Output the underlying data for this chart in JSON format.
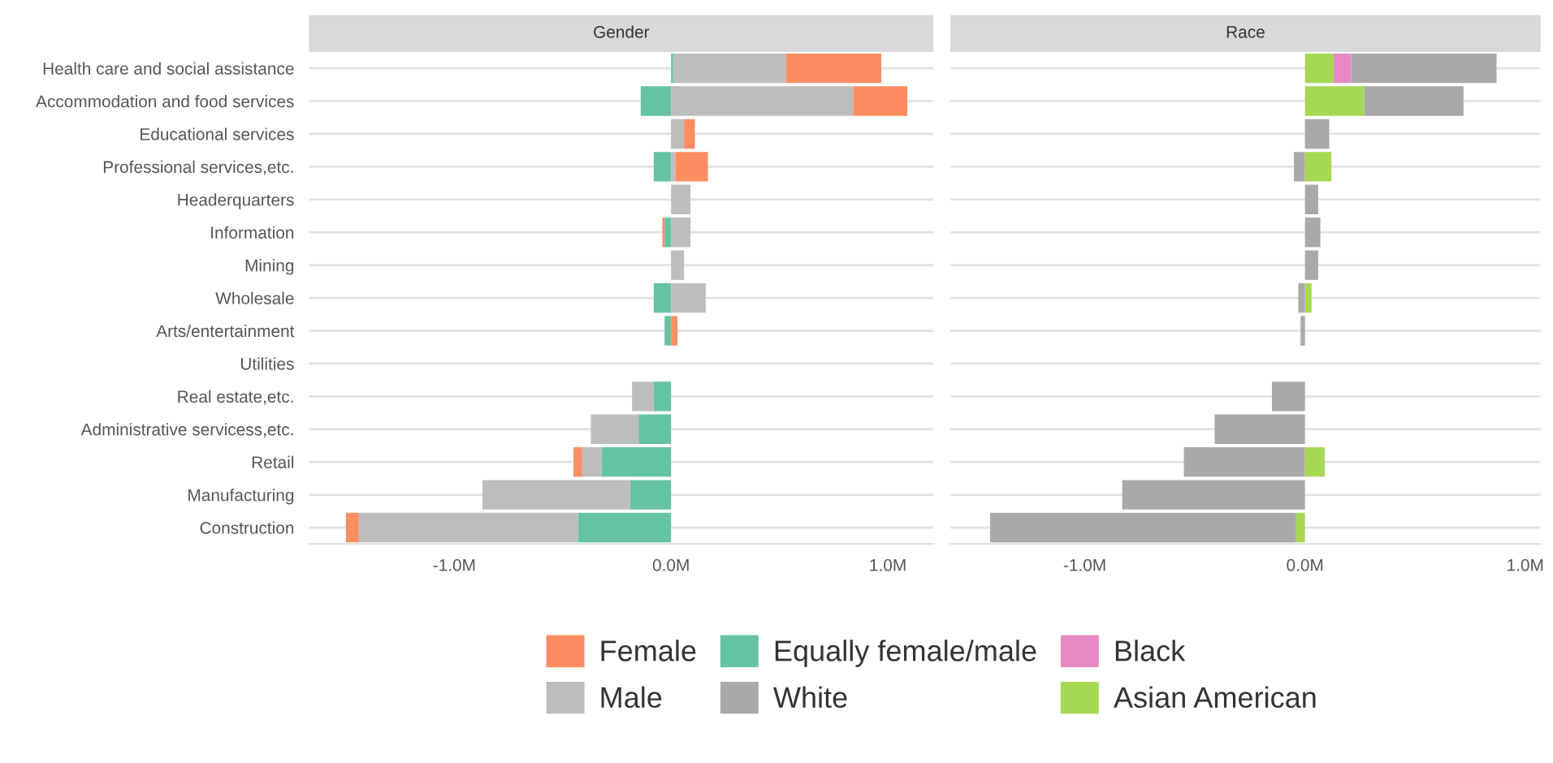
{
  "chart_data": [
    {
      "type": "bar",
      "orientation": "horizontal",
      "stacked": true,
      "title": "Gender",
      "categories": [
        "Health care and social assistance",
        "Accommodation and food services",
        "Educational services",
        "Professional services,etc.",
        "Headerquarters",
        "Information",
        "Mining",
        "Wholesale",
        "Arts/entertainment",
        "Utilities",
        "Real estate,etc.",
        "Administrative servicess,etc.",
        "Retail",
        "Manufacturing",
        "Construction"
      ],
      "series": [
        {
          "name": "Equally female/male",
          "color": "#66c2a5",
          "values": [
            0.01,
            -0.14,
            0,
            -0.08,
            0,
            -0.03,
            0,
            -0.08,
            -0.03,
            0,
            -0.08,
            -0.15,
            -0.32,
            -0.19,
            -0.43
          ]
        },
        {
          "name": "Male",
          "color": "#bdbdbd",
          "values": [
            0.52,
            0.84,
            0.06,
            0.02,
            0.09,
            0.09,
            0.06,
            0.16,
            0,
            0,
            -0.1,
            -0.22,
            -0.09,
            -0.68,
            -1.01
          ]
        },
        {
          "name": "Female",
          "color": "#fc8d62",
          "values": [
            0.44,
            0.25,
            0.05,
            0.15,
            0,
            -0.01,
            0,
            0,
            0.03,
            0,
            0,
            0,
            -0.04,
            0,
            -0.06
          ]
        }
      ],
      "xlim": [
        -1.67,
        1.21
      ],
      "xticks": [
        {
          "value": -1,
          "label": "-1.0M"
        },
        {
          "value": 0,
          "label": "0.0M"
        },
        {
          "value": 1,
          "label": "1.0M"
        }
      ],
      "grid": "y",
      "legend": "bottom"
    },
    {
      "type": "bar",
      "orientation": "horizontal",
      "stacked": true,
      "title": "Race",
      "categories": [
        null,
        null,
        null,
        null,
        null,
        null,
        null,
        null,
        null,
        null,
        null,
        null,
        null,
        null,
        null
      ],
      "series": [
        {
          "name": "Asian American",
          "color": "#a6d854",
          "values": [
            0.13,
            0.27,
            null,
            0.12,
            null,
            null,
            null,
            0.03,
            null,
            null,
            null,
            null,
            0.09,
            null,
            -0.04
          ]
        },
        {
          "name": "Black",
          "color": "#e78ac3",
          "values": [
            0.08,
            null,
            null,
            null,
            null,
            null,
            null,
            null,
            null,
            null,
            null,
            null,
            null,
            null,
            null
          ]
        },
        {
          "name": "White",
          "color": "#a9a9a9",
          "values": [
            0.66,
            0.45,
            0.11,
            -0.05,
            0.06,
            0.07,
            0.06,
            -0.03,
            -0.02,
            0,
            -0.15,
            -0.41,
            -0.55,
            -0.83,
            -1.39
          ]
        }
      ],
      "xlim": [
        -1.61,
        1.07
      ],
      "xticks": [
        {
          "value": -1,
          "label": "-1.0M"
        },
        {
          "value": 0,
          "label": "0.0M"
        },
        {
          "value": 1,
          "label": "1.0M"
        }
      ],
      "grid": "y",
      "legend": "bottom",
      "tick_labels": "x"
    }
  ]
}
